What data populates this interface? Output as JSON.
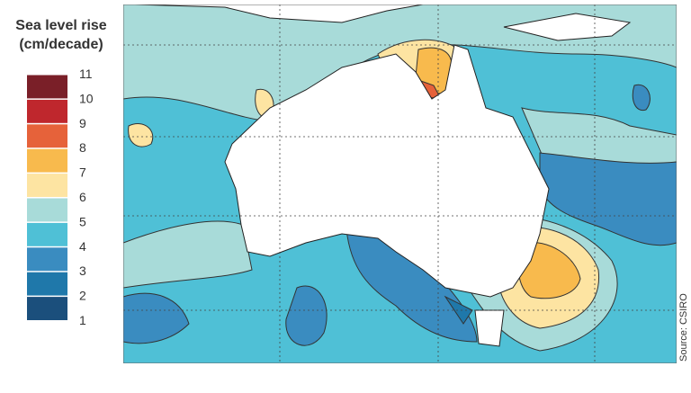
{
  "legend": {
    "title": "Sea level rise",
    "unit": "(cm/decade)",
    "bins": [
      1,
      2,
      3,
      4,
      5,
      6,
      7,
      8,
      9,
      10,
      11
    ],
    "colors": [
      "#1b4f7c",
      "#1f78aa",
      "#3a8cc0",
      "#4fc0d6",
      "#a8dbd9",
      "#fde4a2",
      "#f8ba4d",
      "#e6623a",
      "#bf272d",
      "#7a1f28"
    ]
  },
  "source": "Source: CSIRO"
}
